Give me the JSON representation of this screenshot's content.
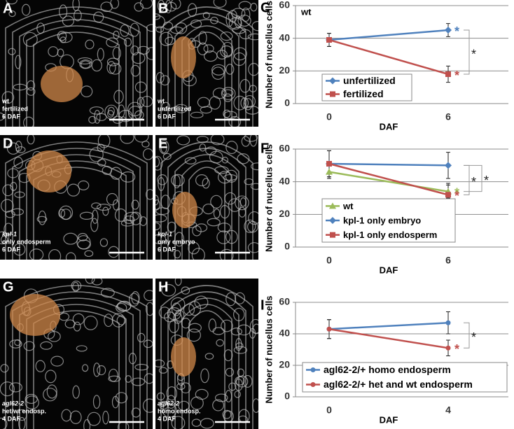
{
  "panels": [
    {
      "letter": "A",
      "caption": [
        "wt",
        "fertilized",
        "6 DAF"
      ]
    },
    {
      "letter": "B",
      "caption": [
        "wt",
        "unfertilized",
        "6 DAF"
      ]
    },
    {
      "letter": "D",
      "caption": [
        "kpl-1",
        "only endosperm",
        "6 DAF"
      ]
    },
    {
      "letter": "E",
      "caption": [
        "kpl-1",
        "only embryo",
        "6 DAF"
      ]
    },
    {
      "letter": "G",
      "caption": [
        "agl62-2",
        "het/wt endosp.",
        "4 DAF"
      ]
    },
    {
      "letter": "H",
      "caption": [
        "agl62-2",
        "homo endosp.",
        "4 DAF"
      ]
    }
  ],
  "chart_data": [
    {
      "type": "line",
      "panel_label": "C",
      "note": "wt",
      "y_label": "Number of nucellus cells",
      "x_label": "DAF",
      "categories": [
        "0",
        "6"
      ],
      "ylim": [
        0,
        60
      ],
      "yticks": [
        0,
        20,
        40,
        60
      ],
      "grid": true,
      "series": [
        {
          "name": "unfertilized",
          "color": "#4f81bd",
          "marker": "diamond",
          "values": [
            39,
            45
          ],
          "errors": [
            4,
            4
          ],
          "end_label": "*"
        },
        {
          "name": "fertilized",
          "color": "#c0504d",
          "marker": "square",
          "values": [
            39,
            18
          ],
          "errors": [
            4,
            5
          ],
          "end_label": "*"
        }
      ],
      "bracket_labels": [
        "*"
      ]
    },
    {
      "type": "line",
      "panel_label": "F",
      "y_label": "Number of nucellus cells",
      "x_label": "DAF",
      "categories": [
        "0",
        "6"
      ],
      "ylim": [
        0,
        60
      ],
      "yticks": [
        0,
        20,
        40,
        60
      ],
      "grid": true,
      "series": [
        {
          "name": "wt",
          "color": "#9bbb59",
          "marker": "triangle",
          "values": [
            46,
            34
          ],
          "errors": [
            4,
            4
          ],
          "end_label": "*"
        },
        {
          "name": "kpl-1 only embryo",
          "color": "#4f81bd",
          "marker": "diamond",
          "values": [
            51,
            50
          ],
          "errors": [
            8,
            8
          ]
        },
        {
          "name": "kpl-1 only endosperm",
          "color": "#c0504d",
          "marker": "square",
          "values": [
            51,
            32
          ],
          "errors": [
            8,
            7
          ],
          "end_label": "*"
        }
      ],
      "bracket_labels": [
        "*",
        "*"
      ]
    },
    {
      "type": "line",
      "panel_label": "I",
      "y_label": "Number of nucellus cells",
      "x_label": "DAF",
      "categories": [
        "0",
        "4"
      ],
      "ylim": [
        0,
        60
      ],
      "yticks": [
        0,
        20,
        40,
        60
      ],
      "grid": true,
      "series": [
        {
          "name": "agl62-2/+ homo endosperm",
          "color": "#4f81bd",
          "marker": "circle",
          "values": [
            43,
            47
          ],
          "errors": [
            6,
            7
          ]
        },
        {
          "name": "agl62-2/+ het and wt endosperm",
          "color": "#c0504d",
          "marker": "circle",
          "values": [
            43,
            31
          ],
          "errors": [
            6,
            5
          ],
          "end_label": "*"
        }
      ],
      "bracket_labels": [
        "*"
      ]
    }
  ]
}
